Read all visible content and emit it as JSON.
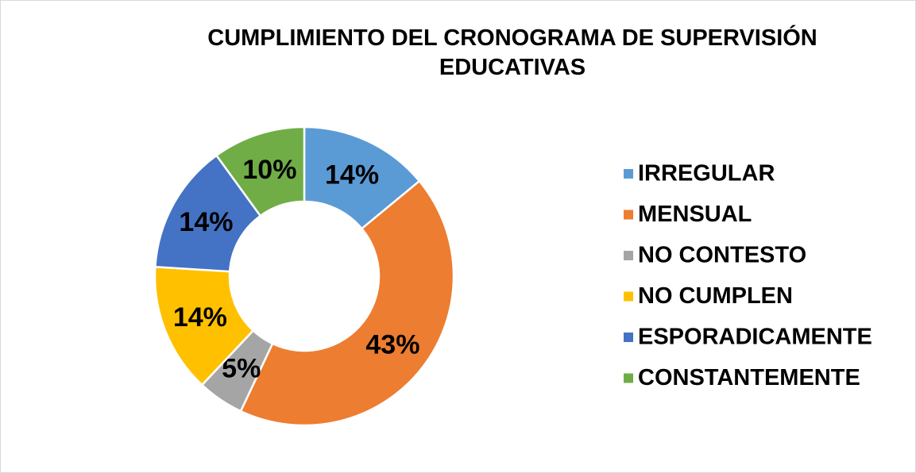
{
  "chart_data": {
    "type": "donut",
    "title": "CUMPLIMIENTO DEL CRONOGRAMA DE SUPERVISIÓN EDUCATIVAS",
    "categories": [
      "IRREGULAR",
      "MENSUAL",
      "NO CONTESTO",
      "NO CUMPLEN",
      "ESPORADICAMENTE",
      "CONSTANTEMENTE"
    ],
    "values": [
      14,
      43,
      5,
      14,
      14,
      10
    ],
    "value_labels": [
      "14%",
      "43%",
      "5%",
      "14%",
      "14%",
      "10%"
    ],
    "colors": [
      "#5b9bd5",
      "#ed7d31",
      "#a5a5a5",
      "#ffc000",
      "#4472c4",
      "#70ad47"
    ],
    "legend": "right"
  }
}
